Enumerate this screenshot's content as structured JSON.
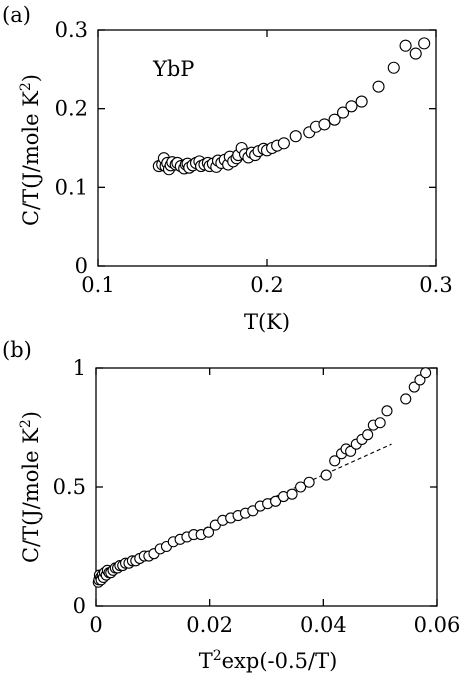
{
  "chart_data": [
    {
      "type": "scatter",
      "panel_label": "(a)",
      "annotation": "YbP",
      "xlabel": "T(K)",
      "ylabel": "C/T(J/mole K",
      "ylabel_sup": "2",
      "ylabel_close": ")",
      "xlim": [
        0.1,
        0.3
      ],
      "ylim": [
        0,
        0.3
      ],
      "xticks": [
        0.1,
        0.2,
        0.3
      ],
      "xtick_labels": [
        "0.1",
        "0.2",
        "0.3"
      ],
      "yticks": [
        0,
        0.1,
        0.2,
        0.3
      ],
      "ytick_labels": [
        "0",
        "0.1",
        "0.2",
        "0.3"
      ],
      "grid": false,
      "series": [
        {
          "x": [
            0.136,
            0.138,
            0.139,
            0.14,
            0.141,
            0.142,
            0.143,
            0.144,
            0.146,
            0.147,
            0.149,
            0.151,
            0.152,
            0.153,
            0.154,
            0.156,
            0.158,
            0.16,
            0.161,
            0.163,
            0.165,
            0.166,
            0.168,
            0.17,
            0.171,
            0.173,
            0.175,
            0.177,
            0.178,
            0.18,
            0.182,
            0.183,
            0.185,
            0.187,
            0.189,
            0.191,
            0.193,
            0.195,
            0.198,
            0.2,
            0.203,
            0.206,
            0.21,
            0.217,
            0.225,
            0.229,
            0.234,
            0.24,
            0.245,
            0.25,
            0.256,
            0.266,
            0.275,
            0.282,
            0.288,
            0.293
          ],
          "y": [
            0.127,
            0.129,
            0.137,
            0.127,
            0.131,
            0.123,
            0.128,
            0.132,
            0.129,
            0.131,
            0.127,
            0.124,
            0.129,
            0.13,
            0.125,
            0.128,
            0.131,
            0.133,
            0.127,
            0.129,
            0.131,
            0.127,
            0.13,
            0.126,
            0.134,
            0.131,
            0.135,
            0.129,
            0.139,
            0.133,
            0.137,
            0.141,
            0.15,
            0.142,
            0.138,
            0.144,
            0.141,
            0.146,
            0.149,
            0.147,
            0.15,
            0.153,
            0.156,
            0.165,
            0.17,
            0.177,
            0.18,
            0.186,
            0.195,
            0.203,
            0.209,
            0.228,
            0.252,
            0.28,
            0.27,
            0.283
          ]
        }
      ]
    },
    {
      "type": "scatter",
      "panel_label": "(b)",
      "xlabel_base": "T",
      "xlabel_sup": "2",
      "xlabel_rest": "exp(-0.5/T)",
      "ylabel": "C/T(J/mole K",
      "ylabel_sup": "2",
      "ylabel_close": ")",
      "xlim": [
        0,
        0.06
      ],
      "ylim": [
        0,
        1
      ],
      "xticks": [
        0,
        0.02,
        0.04,
        0.06
      ],
      "xtick_labels": [
        "0",
        "0.02",
        "0.04",
        "0.06"
      ],
      "yticks": [
        0,
        0.5,
        1
      ],
      "ytick_labels": [
        "0",
        "0.5",
        "1"
      ],
      "grid": false,
      "series": [
        {
          "x": [
            0.0004,
            0.0005,
            0.0006,
            0.0008,
            0.0009,
            0.0011,
            0.0013,
            0.0015,
            0.0018,
            0.002,
            0.0023,
            0.0026,
            0.003,
            0.0034,
            0.0038,
            0.0042,
            0.0047,
            0.0052,
            0.0058,
            0.0064,
            0.007,
            0.0077,
            0.0085,
            0.0093,
            0.0102,
            0.0113,
            0.0124,
            0.0136,
            0.0148,
            0.016,
            0.0172,
            0.0185,
            0.0198,
            0.021,
            0.0223,
            0.0237,
            0.025,
            0.0263,
            0.0276,
            0.0289,
            0.0302,
            0.0316,
            0.033,
            0.0345,
            0.036,
            0.0375,
            0.0405,
            0.042,
            0.0432,
            0.044,
            0.0448,
            0.0458,
            0.0468,
            0.0478,
            0.0488,
            0.05,
            0.0512,
            0.0545,
            0.056,
            0.057,
            0.058
          ],
          "y": [
            0.1,
            0.11,
            0.13,
            0.12,
            0.11,
            0.13,
            0.12,
            0.14,
            0.13,
            0.15,
            0.14,
            0.14,
            0.15,
            0.16,
            0.16,
            0.17,
            0.17,
            0.18,
            0.18,
            0.19,
            0.19,
            0.2,
            0.21,
            0.21,
            0.22,
            0.24,
            0.25,
            0.27,
            0.28,
            0.29,
            0.3,
            0.3,
            0.31,
            0.34,
            0.36,
            0.37,
            0.38,
            0.39,
            0.4,
            0.42,
            0.43,
            0.44,
            0.46,
            0.47,
            0.5,
            0.52,
            0.55,
            0.61,
            0.64,
            0.66,
            0.65,
            0.68,
            0.7,
            0.72,
            0.76,
            0.77,
            0.82,
            0.87,
            0.92,
            0.95,
            0.98
          ]
        }
      ],
      "fit_line": {
        "x": [
          0,
          0.052
        ],
        "y": [
          0.12,
          0.68
        ]
      }
    }
  ]
}
